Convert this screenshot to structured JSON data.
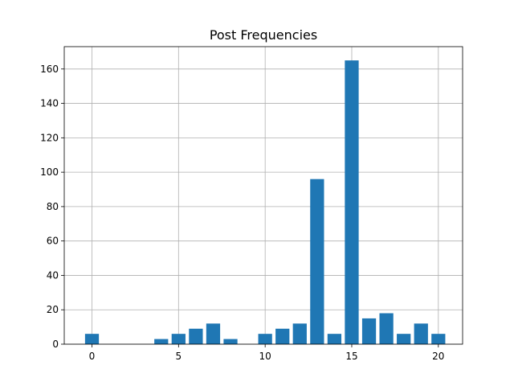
{
  "chart_data": {
    "type": "bar",
    "title": "Post Frequencies",
    "xlabel": "",
    "ylabel": "",
    "x": [
      0,
      4,
      5,
      6,
      7,
      8,
      10,
      11,
      12,
      13,
      14,
      15,
      16,
      17,
      18,
      19,
      20
    ],
    "values": [
      6,
      3,
      6,
      9,
      12,
      3,
      6,
      9,
      12,
      96,
      6,
      165,
      15,
      18,
      6,
      12,
      6
    ],
    "xlim": [
      -1.6,
      21.4
    ],
    "ylim": [
      0,
      173
    ],
    "xticks": [
      0,
      5,
      10,
      15,
      20
    ],
    "yticks": [
      0,
      20,
      40,
      60,
      80,
      100,
      120,
      140,
      160
    ],
    "bar_width": 0.8,
    "grid": true,
    "bar_color": "#1f77b4"
  }
}
